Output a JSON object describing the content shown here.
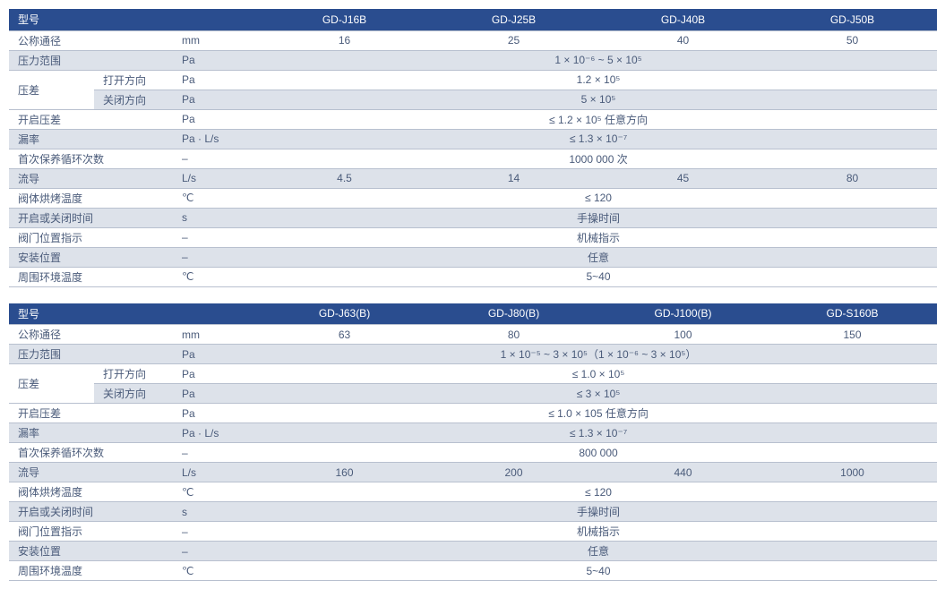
{
  "colors": {
    "header_bg": "#2a4d8f",
    "header_fg": "#ffffff",
    "row_even_bg": "#ffffff",
    "row_odd_bg": "#dde2ea",
    "border": "#b8c0cf",
    "text": "#4a5b7a"
  },
  "t1": {
    "header": {
      "label": "型号",
      "models": [
        "GD-J16B",
        "GD-J25B",
        "GD-J40B",
        "GD-J50B"
      ]
    },
    "rows": [
      {
        "label": "公称通径",
        "sub": "",
        "unit": "mm",
        "vals": [
          "16",
          "25",
          "40",
          "50"
        ],
        "span": false,
        "parity": "even"
      },
      {
        "label": "压力范围",
        "sub": "",
        "unit": "Pa",
        "vals": [
          "1 × 10⁻⁶ ~ 5 × 10⁵"
        ],
        "span": true,
        "parity": "odd"
      },
      {
        "label": "压差",
        "sub": "打开方向",
        "unit": "Pa",
        "vals": [
          "1.2 × 10⁵"
        ],
        "span": true,
        "parity": "even",
        "rowspan_label": 2
      },
      {
        "label": "",
        "sub": "关闭方向",
        "unit": "Pa",
        "vals": [
          "5 × 10⁵"
        ],
        "span": true,
        "parity": "odd",
        "skip_label": true
      },
      {
        "label": "开启压差",
        "sub": "",
        "unit": "Pa",
        "vals": [
          "≤ 1.2 × 10⁵ 任意方向"
        ],
        "span": true,
        "parity": "even"
      },
      {
        "label": "漏率",
        "sub": "",
        "unit": "Pa · L/s",
        "vals": [
          "≤ 1.3 × 10⁻⁷"
        ],
        "span": true,
        "parity": "odd"
      },
      {
        "label": "首次保养循环次数",
        "sub": "",
        "unit": "–",
        "vals": [
          "1000 000 次"
        ],
        "span": true,
        "parity": "even"
      },
      {
        "label": "流导",
        "sub": "",
        "unit": "L/s",
        "vals": [
          "4.5",
          "14",
          "45",
          "80"
        ],
        "span": false,
        "parity": "odd"
      },
      {
        "label": "阀体烘烤温度",
        "sub": "",
        "unit": "℃",
        "vals": [
          "≤ 120"
        ],
        "span": true,
        "parity": "even"
      },
      {
        "label": "开启或关闭时间",
        "sub": "",
        "unit": "s",
        "vals": [
          "手操时间"
        ],
        "span": true,
        "parity": "odd"
      },
      {
        "label": "阀门位置指示",
        "sub": "",
        "unit": "–",
        "vals": [
          "机械指示"
        ],
        "span": true,
        "parity": "even"
      },
      {
        "label": "安装位置",
        "sub": "",
        "unit": "–",
        "vals": [
          "任意"
        ],
        "span": true,
        "parity": "odd"
      },
      {
        "label": "周围环境温度",
        "sub": "",
        "unit": "℃",
        "vals": [
          "5~40"
        ],
        "span": true,
        "parity": "even"
      }
    ]
  },
  "t2": {
    "header": {
      "label": "型号",
      "models": [
        "GD-J63(B)",
        "GD-J80(B)",
        "GD-J100(B)",
        "GD-S160B"
      ]
    },
    "rows": [
      {
        "label": "公称通径",
        "sub": "",
        "unit": "mm",
        "vals": [
          "63",
          "80",
          "100",
          "150"
        ],
        "span": false,
        "parity": "even"
      },
      {
        "label": "压力范围",
        "sub": "",
        "unit": "Pa",
        "vals": [
          "1 × 10⁻⁵ ~ 3 × 10⁵（1 × 10⁻⁶ ~ 3 × 10⁵）"
        ],
        "span": true,
        "parity": "odd"
      },
      {
        "label": "压差",
        "sub": "打开方向",
        "unit": "Pa",
        "vals": [
          "≤ 1.0 × 10⁵"
        ],
        "span": true,
        "parity": "even",
        "rowspan_label": 2
      },
      {
        "label": "",
        "sub": "关闭方向",
        "unit": "Pa",
        "vals": [
          "≤ 3 × 10⁵"
        ],
        "span": true,
        "parity": "odd",
        "skip_label": true
      },
      {
        "label": "开启压差",
        "sub": "",
        "unit": "Pa",
        "vals": [
          "≤ 1.0 × 105 任意方向"
        ],
        "span": true,
        "parity": "even"
      },
      {
        "label": "漏率",
        "sub": "",
        "unit": "Pa · L/s",
        "vals": [
          "≤ 1.3 × 10⁻⁷"
        ],
        "span": true,
        "parity": "odd"
      },
      {
        "label": "首次保养循环次数",
        "sub": "",
        "unit": "–",
        "vals": [
          "800 000"
        ],
        "span": true,
        "parity": "even"
      },
      {
        "label": "流导",
        "sub": "",
        "unit": "L/s",
        "vals": [
          "160",
          "200",
          "440",
          "1000"
        ],
        "span": false,
        "parity": "odd"
      },
      {
        "label": "阀体烘烤温度",
        "sub": "",
        "unit": "℃",
        "vals": [
          "≤ 120"
        ],
        "span": true,
        "parity": "even"
      },
      {
        "label": "开启或关闭时间",
        "sub": "",
        "unit": "s",
        "vals": [
          "手操时间"
        ],
        "span": true,
        "parity": "odd"
      },
      {
        "label": "阀门位置指示",
        "sub": "",
        "unit": "–",
        "vals": [
          "机械指示"
        ],
        "span": true,
        "parity": "even"
      },
      {
        "label": "安装位置",
        "sub": "",
        "unit": "–",
        "vals": [
          "任意"
        ],
        "span": true,
        "parity": "odd"
      },
      {
        "label": "周围环境温度",
        "sub": "",
        "unit": "℃",
        "vals": [
          "5~40"
        ],
        "span": true,
        "parity": "even"
      }
    ]
  }
}
